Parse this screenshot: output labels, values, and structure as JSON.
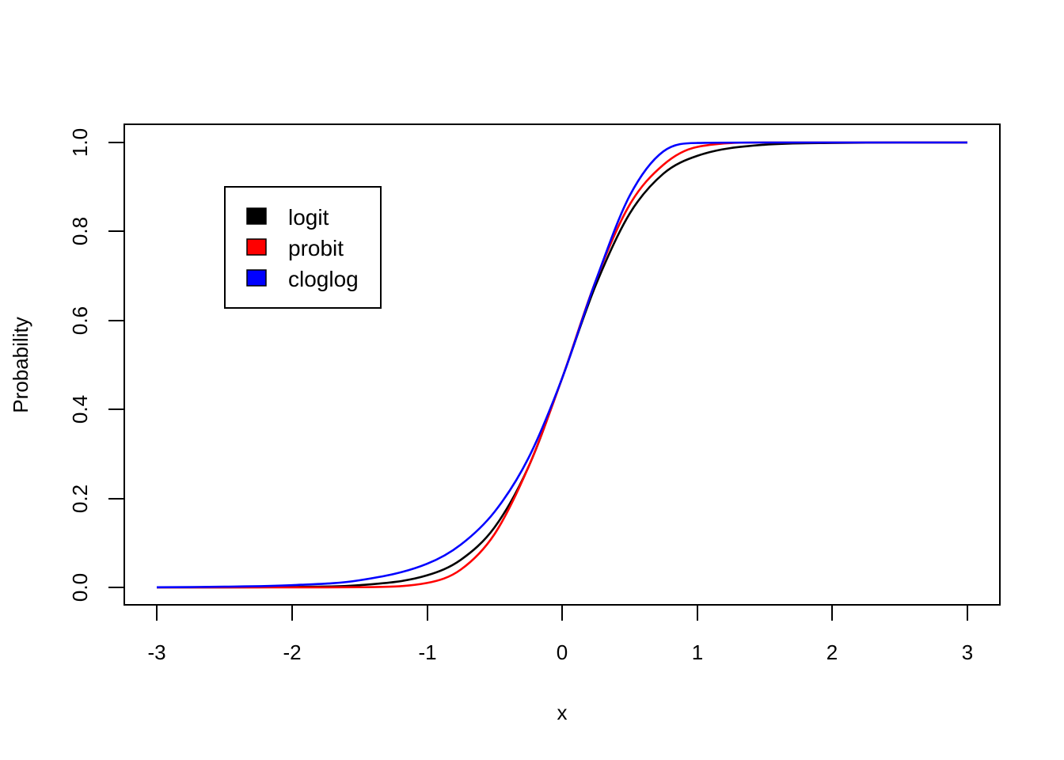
{
  "chart_data": {
    "type": "line",
    "title": "",
    "xlabel": "x",
    "ylabel": "Probability",
    "xlim": [
      -3,
      3
    ],
    "ylim": [
      0,
      1
    ],
    "x_ticks": [
      "-3",
      "-2",
      "-1",
      "0",
      "1",
      "2",
      "3"
    ],
    "y_ticks": [
      "0.0",
      "0.2",
      "0.4",
      "0.6",
      "0.8",
      "1.0"
    ],
    "grid": false,
    "legend_position": "top-left inset",
    "x": [
      -3,
      -2.5,
      -2,
      -1.5,
      -1,
      -0.75,
      -0.5,
      -0.25,
      0,
      0.25,
      0.5,
      0.75,
      1,
      1.5,
      2,
      2.5,
      3
    ],
    "series": [
      {
        "name": "logit",
        "color": "#000000",
        "values": [
          0.0,
          0.0002,
          0.001,
          0.005,
          0.027,
          0.062,
          0.135,
          0.27,
          0.47,
          0.68,
          0.84,
          0.93,
          0.97,
          0.995,
          0.999,
          1.0,
          1.0
        ]
      },
      {
        "name": "probit",
        "color": "#ff0000",
        "values": [
          0.0,
          0.0,
          0.0,
          0.0005,
          0.01,
          0.04,
          0.12,
          0.27,
          0.47,
          0.69,
          0.86,
          0.95,
          0.99,
          1.0,
          1.0,
          1.0,
          1.0
        ]
      },
      {
        "name": "cloglog",
        "color": "#0000ff",
        "values": [
          0.0004,
          0.0016,
          0.005,
          0.016,
          0.053,
          0.096,
          0.17,
          0.29,
          0.47,
          0.69,
          0.88,
          0.98,
          0.999,
          1.0,
          1.0,
          1.0,
          1.0
        ]
      }
    ]
  },
  "legend": {
    "items": [
      {
        "label": "logit",
        "color": "#000000"
      },
      {
        "label": "probit",
        "color": "#ff0000"
      },
      {
        "label": "cloglog",
        "color": "#0000ff"
      }
    ]
  },
  "axes": {
    "xlabel": "x",
    "ylabel": "Probability",
    "x_ticks": [
      "-3",
      "-2",
      "-1",
      "0",
      "1",
      "2",
      "3"
    ],
    "y_ticks": [
      "0.0",
      "0.2",
      "0.4",
      "0.6",
      "0.8",
      "1.0"
    ]
  }
}
